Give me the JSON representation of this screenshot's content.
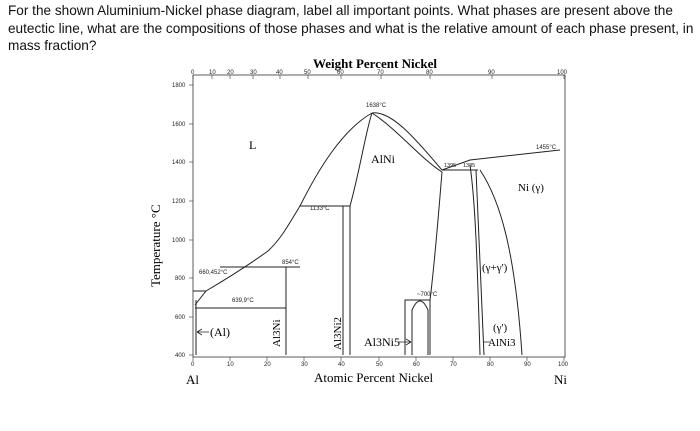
{
  "question": "For the shown Aluminium-Nickel phase diagram, label all important points. What phases are present above the eutectic line, what are the compositions of those phases and what is the relative amount of each phase present, in mass fraction?",
  "diagram": {
    "top_axis_title": "Weight Percent Nickel",
    "bottom_axis_title": "Atomic Percent Nickel",
    "y_axis_title": "Temperature °C",
    "left_element": "Al",
    "right_element": "Ni",
    "y_ticks": [
      "1800",
      "1600",
      "1400",
      "1200",
      "1000",
      "800",
      "600",
      "400"
    ],
    "top_ticks": [
      "0",
      "10",
      "20",
      "30",
      "40",
      "50",
      "60",
      "70",
      "80",
      "90",
      "100"
    ],
    "bottom_ticks": [
      "0",
      "10",
      "20",
      "30",
      "40",
      "50",
      "60",
      "70",
      "80",
      "90",
      "100"
    ],
    "temperature_notes": {
      "alni_max": "1638°C",
      "ni_melt": "1455°C",
      "peritectic_1133": "1133°C",
      "peritectic_854": "854°C",
      "eutectic_660": "660,452°C",
      "eutectic_639": "639,9°C",
      "transition_700": "~700°C",
      "t_1395": "1395",
      "t_1385": "1385"
    },
    "phase_labels": {
      "liquid": "L",
      "alni": "AlNi",
      "ni_gamma": "Ni (γ)",
      "gamma_mix": "(γ+γ')",
      "gamma_prime": "(γ')",
      "ni3al": "AlNi3",
      "al": "(Al)",
      "al3ni": "Al3Ni",
      "al3ni2": "Al3Ni2",
      "al3ni5": "Al3Ni5"
    }
  }
}
